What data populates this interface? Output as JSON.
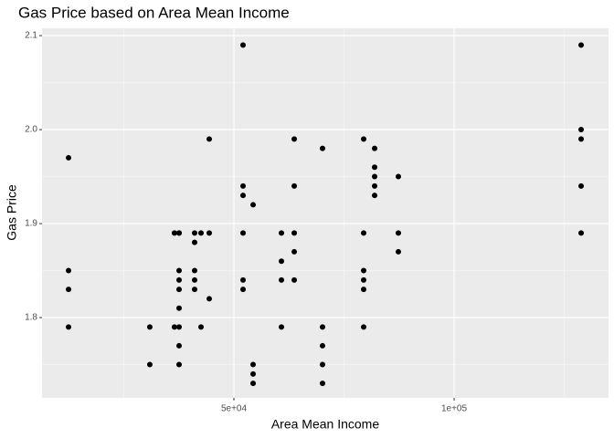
{
  "chart_data": {
    "type": "scatter",
    "title": "Gas Price based on Area Mean Income",
    "x_label": "Area Mean Income",
    "y_label": "Gas Price",
    "series": [
      {
        "color": "#000000",
        "x": [
          12450,
          12450,
          12450,
          12450,
          30900,
          30900,
          36500,
          37550,
          37550,
          36500,
          37550,
          37550,
          37550,
          37550,
          37550,
          37550,
          37550,
          41080,
          41080,
          41080,
          41080,
          41080,
          42530,
          42530,
          44400,
          44400,
          44400,
          52075,
          52075,
          52075,
          52075,
          52075,
          52075,
          54360,
          54360,
          54360,
          54360,
          60790,
          60790,
          60790,
          60790,
          63700,
          63700,
          63700,
          63700,
          63700,
          70120,
          70120,
          70120,
          70120,
          70120,
          79460,
          79460,
          79460,
          79460,
          79460,
          79460,
          81950,
          81950,
          81950,
          81950,
          81950,
          87340,
          87340,
          87340,
          128840,
          128840,
          128840,
          128840,
          128840
        ],
        "values": [
          1.97,
          1.85,
          1.83,
          1.79,
          1.79,
          1.75,
          1.89,
          1.89,
          1.79,
          1.79,
          1.75,
          1.85,
          1.84,
          1.83,
          1.81,
          1.77,
          1.89,
          1.89,
          1.88,
          1.85,
          1.84,
          1.83,
          1.89,
          1.79,
          1.99,
          1.89,
          1.82,
          2.09,
          1.94,
          1.93,
          1.89,
          1.84,
          1.83,
          1.92,
          1.75,
          1.74,
          1.73,
          1.89,
          1.86,
          1.84,
          1.79,
          1.99,
          1.94,
          1.89,
          1.87,
          1.84,
          1.98,
          1.79,
          1.77,
          1.75,
          1.73,
          1.99,
          1.89,
          1.85,
          1.84,
          1.83,
          1.79,
          1.98,
          1.96,
          1.95,
          1.94,
          1.93,
          1.95,
          1.89,
          1.87,
          2.09,
          2.0,
          1.99,
          1.94,
          1.89
        ]
      }
    ],
    "xlim": [
      6430,
      135060
    ],
    "xticks": [
      {
        "value": 50000,
        "label": "5e+04"
      },
      {
        "value": 100000,
        "label": "1e+05"
      }
    ],
    "ylim": [
      1.7146,
      2.1078
    ],
    "yticks": [
      1.8,
      1.9,
      {
        "value": 2,
        "label": "2.0"
      },
      2.1
    ],
    "grid": true
  }
}
